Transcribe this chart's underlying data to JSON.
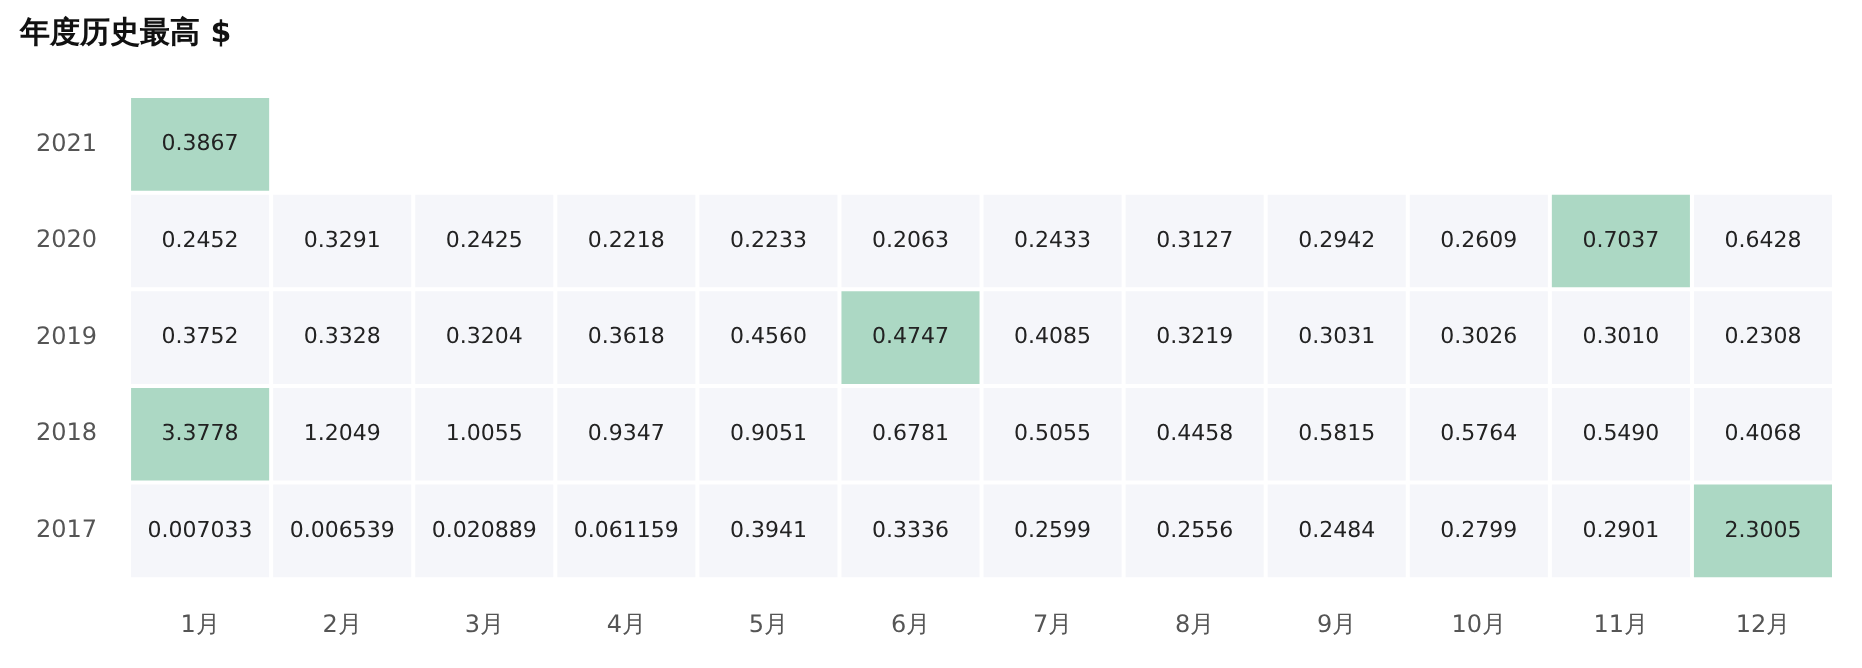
{
  "chart_data": {
    "type": "heatmap",
    "title": "年度历史最高 $",
    "categories": [
      "1月",
      "2月",
      "3月",
      "4月",
      "5月",
      "6月",
      "7月",
      "8月",
      "9月",
      "10月",
      "11月",
      "12月"
    ],
    "y_categories": [
      "2021",
      "2020",
      "2019",
      "2018",
      "2017"
    ],
    "cells": [
      [
        0.3867,
        null,
        null,
        null,
        null,
        null,
        null,
        null,
        null,
        null,
        null,
        null
      ],
      [
        0.2452,
        0.3291,
        0.2425,
        0.2218,
        0.2233,
        0.2063,
        0.2433,
        0.3127,
        0.2942,
        0.2609,
        0.7037,
        0.6428
      ],
      [
        0.3752,
        0.3328,
        0.3204,
        0.3618,
        0.456,
        0.4747,
        0.4085,
        0.3219,
        0.3031,
        0.3026,
        0.301,
        0.2308
      ],
      [
        3.3778,
        1.2049,
        1.0055,
        0.9347,
        0.9051,
        0.6781,
        0.5055,
        0.4458,
        0.5815,
        0.5764,
        0.549,
        0.4068
      ],
      [
        0.007033,
        0.006539,
        0.020889,
        0.061159,
        0.3941,
        0.3336,
        0.2599,
        0.2556,
        0.2484,
        0.2799,
        0.2901,
        2.3005
      ]
    ],
    "data_labels": true,
    "cell_labels": [
      [
        "0.3867",
        null,
        null,
        null,
        null,
        null,
        null,
        null,
        null,
        null,
        null,
        null
      ],
      [
        "0.2452",
        "0.3291",
        "0.2425",
        "0.2218",
        "0.2233",
        "0.2063",
        "0.2433",
        "0.3127",
        "0.2942",
        "0.2609",
        "0.7037",
        "0.6428"
      ],
      [
        "0.3752",
        "0.3328",
        "0.3204",
        "0.3618",
        "0.4560",
        "0.4747",
        "0.4085",
        "0.3219",
        "0.3031",
        "0.3026",
        "0.3010",
        "0.2308"
      ],
      [
        "3.3778",
        "1.2049",
        "1.0055",
        "0.9347",
        "0.9051",
        "0.6781",
        "0.5055",
        "0.4458",
        "0.5815",
        "0.5764",
        "0.5490",
        "0.4068"
      ],
      [
        "0.007033",
        "0.006539",
        "0.020889",
        "0.061159",
        "0.3941",
        "0.3336",
        "0.2599",
        "0.2556",
        "0.2484",
        "0.2799",
        "0.2901",
        "2.3005"
      ]
    ],
    "colors": [
      [
        "#acd8c4",
        null,
        null,
        null,
        null,
        null,
        null,
        null,
        null,
        null,
        null,
        null
      ],
      [
        "#f5f6fa",
        "#f5f6fa",
        "#f5f6fa",
        "#f5f6fa",
        "#f5f6fa",
        "#f5f6fa",
        "#f5f6fa",
        "#f5f6fa",
        "#f5f6fa",
        "#f5f6fa",
        "#acd8c4",
        "#f5f6fa"
      ],
      [
        "#f5f6fa",
        "#f5f6fa",
        "#f5f6fa",
        "#f5f6fa",
        "#f5f6fa",
        "#acd8c4",
        "#f5f6fa",
        "#f5f6fa",
        "#f5f6fa",
        "#f5f6fa",
        "#f5f6fa",
        "#f5f6fa"
      ],
      [
        "#acd8c4",
        "#f5f6fa",
        "#f5f6fa",
        "#f5f6fa",
        "#f5f6fa",
        "#f5f6fa",
        "#f5f6fa",
        "#f5f6fa",
        "#f5f6fa",
        "#f5f6fa",
        "#f5f6fa",
        "#f5f6fa"
      ],
      [
        "#f5f6fa",
        "#f5f6fa",
        "#f5f6fa",
        "#f5f6fa",
        "#f5f6fa",
        "#f5f6fa",
        "#f5f6fa",
        "#f5f6fa",
        "#f5f6fa",
        "#f5f6fa",
        "#f5f6fa",
        "#acd8c4"
      ]
    ]
  }
}
